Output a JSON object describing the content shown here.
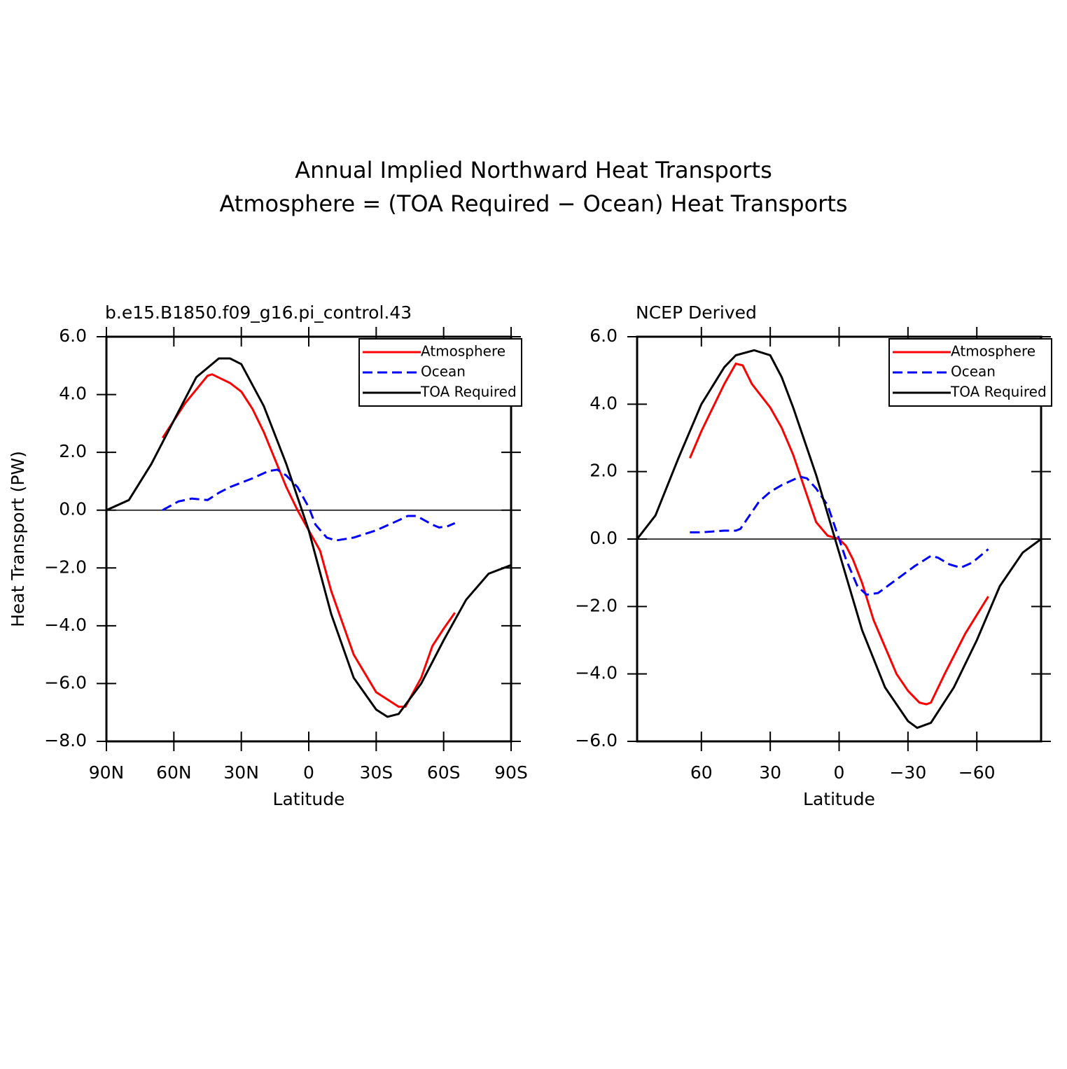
{
  "title": [
    "Annual Implied Northward Heat Transports",
    "Atmosphere = (TOA Required − Ocean) Heat Transports"
  ],
  "chart_data": [
    {
      "type": "line",
      "subtitle": "b.e15.B1850.f09_g16.pi_control.43",
      "x_label": "Latitude",
      "y_label": "Heat Transport (PW)",
      "xlim": [
        90,
        -90
      ],
      "ylim": [
        -8,
        6
      ],
      "xticks": [
        {
          "value": 90,
          "label": "90N"
        },
        {
          "value": 60,
          "label": "60N"
        },
        {
          "value": 30,
          "label": "30N"
        },
        0,
        {
          "value": -30,
          "label": "30S"
        },
        {
          "value": -60,
          "label": "60S"
        },
        {
          "value": -90,
          "label": "90S"
        }
      ],
      "yticks": [
        {
          "value": 6,
          "label": "6.0"
        },
        {
          "value": 4,
          "label": "4.0"
        },
        {
          "value": 2,
          "label": "2.0"
        },
        {
          "value": 0,
          "label": "0.0"
        },
        {
          "value": -2,
          "label": "−2.0"
        },
        {
          "value": -4,
          "label": "−4.0"
        },
        {
          "value": -6,
          "label": "−6.0"
        },
        {
          "value": -8,
          "label": "−8.0"
        }
      ],
      "legend": "upper right",
      "series": [
        {
          "name": "Atmosphere",
          "color": "#ff0000",
          "dashed": false,
          "x": [
            65,
            55,
            45,
            43,
            35,
            30,
            25,
            20,
            10,
            5,
            0,
            -5,
            -10,
            -20,
            -30,
            -40,
            -43,
            -50,
            -55,
            -60,
            -65
          ],
          "values": [
            2.5,
            3.7,
            4.65,
            4.7,
            4.4,
            4.1,
            3.5,
            2.7,
            0.8,
            0,
            -0.7,
            -1.4,
            -2.8,
            -5.0,
            -6.3,
            -6.8,
            -6.8,
            -5.8,
            -4.7,
            -4.1,
            -3.55
          ]
        },
        {
          "name": "Ocean",
          "color": "#0000ff",
          "dashed": true,
          "x": [
            65,
            58,
            52,
            45,
            40,
            35,
            25,
            18,
            14,
            10,
            5,
            0,
            -3,
            -8,
            -12,
            -20,
            -30,
            -40,
            -44,
            -48,
            -55,
            -58,
            -62,
            -65
          ],
          "values": [
            0,
            0.3,
            0.4,
            0.35,
            0.6,
            0.8,
            1.1,
            1.35,
            1.4,
            1.2,
            0.8,
            0.1,
            -0.5,
            -0.95,
            -1.05,
            -0.95,
            -0.7,
            -0.35,
            -0.2,
            -0.2,
            -0.5,
            -0.6,
            -0.55,
            -0.45
          ]
        },
        {
          "name": "TOA Required",
          "color": "#000000",
          "dashed": false,
          "x": [
            90,
            80,
            70,
            60,
            50,
            40,
            35,
            30,
            20,
            10,
            0,
            -10,
            -20,
            -30,
            -35,
            -40,
            -50,
            -60,
            -70,
            -80,
            -90
          ],
          "values": [
            0,
            0.35,
            1.6,
            3.1,
            4.6,
            5.25,
            5.25,
            5.05,
            3.6,
            1.6,
            -0.7,
            -3.6,
            -5.8,
            -6.9,
            -7.15,
            -7.05,
            -6.0,
            -4.5,
            -3.1,
            -2.2,
            -1.9
          ]
        }
      ]
    },
    {
      "type": "line",
      "subtitle": "NCEP Derived",
      "x_label": "Latitude",
      "xlim": [
        88,
        -88
      ],
      "ylim": [
        -6,
        6
      ],
      "xticks": [
        60,
        30,
        0,
        {
          "value": -30,
          "label": "−30"
        },
        {
          "value": -60,
          "label": "−60"
        }
      ],
      "yticks": [
        {
          "value": 6,
          "label": "6.0"
        },
        {
          "value": 4,
          "label": "4.0"
        },
        {
          "value": 2,
          "label": "2.0"
        },
        {
          "value": 0,
          "label": "0.0"
        },
        {
          "value": -2,
          "label": "−2.0"
        },
        {
          "value": -4,
          "label": "−4.0"
        },
        {
          "value": -6,
          "label": "−6.0"
        }
      ],
      "legend": "upper right",
      "series": [
        {
          "name": "Atmosphere",
          "color": "#ff0000",
          "dashed": false,
          "x": [
            65,
            60,
            50,
            45,
            42,
            38,
            30,
            25,
            20,
            15,
            10,
            5,
            0,
            -3,
            -6,
            -10,
            -15,
            -20,
            -25,
            -30,
            -35,
            -38,
            -40,
            -46,
            -55,
            -65
          ],
          "values": [
            2.4,
            3.2,
            4.6,
            5.2,
            5.15,
            4.6,
            3.9,
            3.3,
            2.5,
            1.5,
            0.5,
            0.1,
            0,
            -0.2,
            -0.6,
            -1.3,
            -2.4,
            -3.2,
            -4.0,
            -4.5,
            -4.85,
            -4.9,
            -4.85,
            -4.0,
            -2.8,
            -1.7
          ]
        },
        {
          "name": "Ocean",
          "color": "#0000ff",
          "dashed": true,
          "x": [
            65,
            60,
            50,
            45,
            43,
            38,
            35,
            30,
            25,
            17,
            14,
            10,
            5,
            0,
            -3,
            -8,
            -12,
            -17,
            -22,
            -28,
            -33,
            -40,
            -43,
            -48,
            -53,
            -58,
            -65
          ],
          "values": [
            0.2,
            0.2,
            0.25,
            0.25,
            0.3,
            0.8,
            1.1,
            1.4,
            1.6,
            1.85,
            1.8,
            1.5,
            1.0,
            0,
            -0.6,
            -1.4,
            -1.65,
            -1.6,
            -1.35,
            -1.05,
            -0.8,
            -0.5,
            -0.55,
            -0.75,
            -0.85,
            -0.7,
            -0.3
          ]
        },
        {
          "name": "TOA Required",
          "color": "#000000",
          "dashed": false,
          "x": [
            88,
            80,
            70,
            60,
            50,
            45,
            37,
            30,
            25,
            20,
            10,
            0,
            -10,
            -20,
            -30,
            -34,
            -40,
            -50,
            -60,
            -70,
            -80,
            -88
          ],
          "values": [
            0,
            0.7,
            2.4,
            4.0,
            5.1,
            5.45,
            5.6,
            5.45,
            4.8,
            3.9,
            1.9,
            -0.4,
            -2.7,
            -4.4,
            -5.4,
            -5.6,
            -5.45,
            -4.4,
            -3.0,
            -1.4,
            -0.4,
            0
          ]
        }
      ]
    }
  ]
}
